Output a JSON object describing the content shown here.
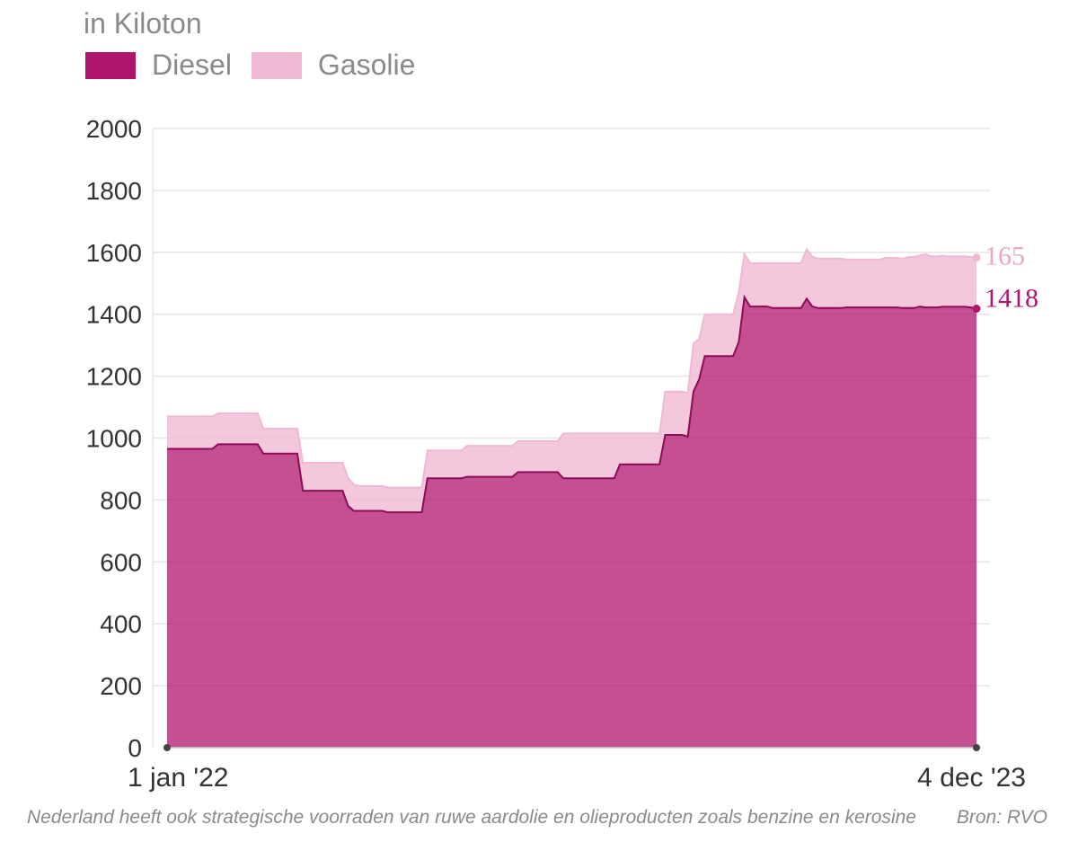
{
  "chart_data": {
    "type": "area",
    "stacked": true,
    "unit_label": "in Kiloton",
    "ylim": [
      0,
      2000
    ],
    "y_ticks": [
      0,
      200,
      400,
      600,
      800,
      1000,
      1200,
      1400,
      1600,
      1800,
      2000
    ],
    "x_start_label": "1 jan '22",
    "x_end_label": "4 dec '23",
    "grid": true,
    "legend_position": "top-left",
    "series": [
      {
        "name": "Diesel",
        "color": "#b0156c",
        "end_label": "1418",
        "values": [
          965,
          965,
          965,
          965,
          965,
          965,
          965,
          965,
          965,
          980,
          980,
          980,
          980,
          980,
          980,
          980,
          980,
          950,
          950,
          950,
          950,
          950,
          950,
          950,
          830,
          830,
          830,
          830,
          830,
          830,
          830,
          830,
          780,
          765,
          765,
          765,
          765,
          765,
          765,
          760,
          760,
          760,
          760,
          760,
          760,
          760,
          870,
          870,
          870,
          870,
          870,
          870,
          870,
          875,
          875,
          875,
          875,
          875,
          875,
          875,
          875,
          875,
          890,
          890,
          890,
          890,
          890,
          890,
          890,
          890,
          870,
          870,
          870,
          870,
          870,
          870,
          870,
          870,
          870,
          870,
          915,
          915,
          915,
          915,
          915,
          915,
          915,
          915,
          1010,
          1010,
          1010,
          1010,
          1005,
          1150,
          1190,
          1265,
          1265,
          1265,
          1265,
          1265,
          1265,
          1310,
          1455,
          1425,
          1425,
          1425,
          1425,
          1420,
          1420,
          1420,
          1420,
          1420,
          1420,
          1450,
          1425,
          1420,
          1420,
          1420,
          1420,
          1420,
          1422,
          1422,
          1422,
          1422,
          1422,
          1422,
          1422,
          1422,
          1422,
          1422,
          1420,
          1420,
          1420,
          1425,
          1422,
          1422,
          1422,
          1424,
          1424,
          1424,
          1424,
          1424,
          1422,
          1418
        ]
      },
      {
        "name": "Gasolie",
        "color": "#f0b9d3",
        "end_label": "165",
        "values": [
          105,
          105,
          105,
          105,
          105,
          105,
          105,
          105,
          105,
          100,
          100,
          100,
          100,
          100,
          100,
          100,
          100,
          80,
          80,
          80,
          80,
          80,
          80,
          80,
          90,
          90,
          90,
          90,
          90,
          90,
          90,
          90,
          90,
          85,
          80,
          80,
          80,
          80,
          80,
          80,
          80,
          80,
          80,
          80,
          80,
          80,
          90,
          90,
          90,
          90,
          90,
          90,
          90,
          100,
          100,
          100,
          100,
          100,
          100,
          100,
          100,
          100,
          100,
          100,
          100,
          100,
          100,
          100,
          100,
          100,
          145,
          145,
          145,
          145,
          145,
          145,
          145,
          145,
          145,
          145,
          100,
          100,
          100,
          100,
          100,
          100,
          100,
          100,
          140,
          140,
          140,
          140,
          140,
          155,
          130,
          135,
          135,
          135,
          135,
          135,
          135,
          160,
          140,
          140,
          140,
          140,
          140,
          145,
          145,
          145,
          145,
          145,
          145,
          160,
          160,
          160,
          160,
          160,
          160,
          160,
          155,
          155,
          155,
          155,
          155,
          155,
          155,
          160,
          160,
          160,
          160,
          165,
          165,
          165,
          172,
          165,
          165,
          165,
          163,
          163,
          163,
          163,
          163,
          165
        ]
      }
    ]
  },
  "footnote": "Nederland heeft ook strategische voorraden van ruwe aardolie en olieproducten zoals benzine en kerosine",
  "source": "Bron: RVO"
}
